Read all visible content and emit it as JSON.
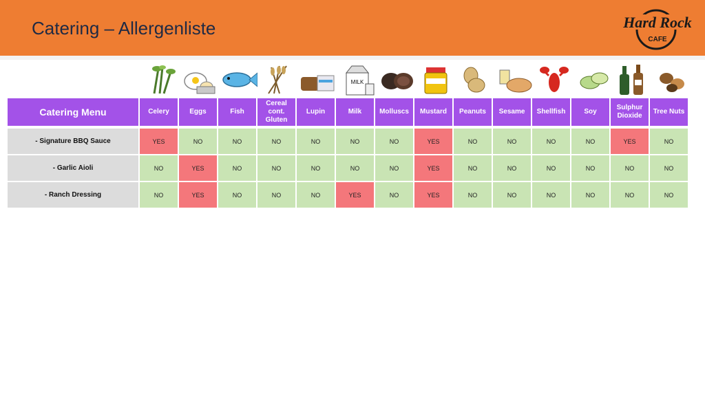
{
  "header": {
    "title": "Catering – Allergenliste",
    "logo_text": "Hard Rock CAFE"
  },
  "colors": {
    "header_bg": "#ee7d32",
    "table_header_bg": "#a352e8",
    "yes_bg": "#f4777b",
    "no_bg": "#c9e4b4",
    "item_bg": "#dcdcdc"
  },
  "table": {
    "menu_header": "Catering Menu",
    "columns": [
      {
        "label": "Celery",
        "icon": "celery-icon"
      },
      {
        "label": "Eggs",
        "icon": "eggs-icon"
      },
      {
        "label": "Fish",
        "icon": "fish-icon"
      },
      {
        "label": "Cereal cont. Gluten",
        "icon": "wheat-icon"
      },
      {
        "label": "Lupin",
        "icon": "bread-icon"
      },
      {
        "label": "Milk",
        "icon": "milk-carton-icon"
      },
      {
        "label": "Molluscs",
        "icon": "mussel-icon"
      },
      {
        "label": "Mustard",
        "icon": "mustard-jar-icon"
      },
      {
        "label": "Peanuts",
        "icon": "peanut-icon"
      },
      {
        "label": "Sesame",
        "icon": "sesame-bread-icon"
      },
      {
        "label": "Shellfish",
        "icon": "lobster-icon"
      },
      {
        "label": "Soy",
        "icon": "soybean-icon"
      },
      {
        "label": "Sulphur Dioxide",
        "icon": "wine-bottle-icon"
      },
      {
        "label": "Tree Nuts",
        "icon": "tree-nuts-icon"
      }
    ],
    "rows": [
      {
        "item": "- Signature BBQ Sauce",
        "values": [
          "YES",
          "NO",
          "NO",
          "NO",
          "NO",
          "NO",
          "NO",
          "YES",
          "NO",
          "NO",
          "NO",
          "NO",
          "YES",
          "NO"
        ]
      },
      {
        "item": "- Garlic Aioli",
        "values": [
          "NO",
          "YES",
          "NO",
          "NO",
          "NO",
          "NO",
          "NO",
          "YES",
          "NO",
          "NO",
          "NO",
          "NO",
          "NO",
          "NO"
        ]
      },
      {
        "item": "- Ranch Dressing",
        "values": [
          "NO",
          "YES",
          "NO",
          "NO",
          "NO",
          "YES",
          "NO",
          "YES",
          "NO",
          "NO",
          "NO",
          "NO",
          "NO",
          "NO"
        ]
      }
    ]
  }
}
